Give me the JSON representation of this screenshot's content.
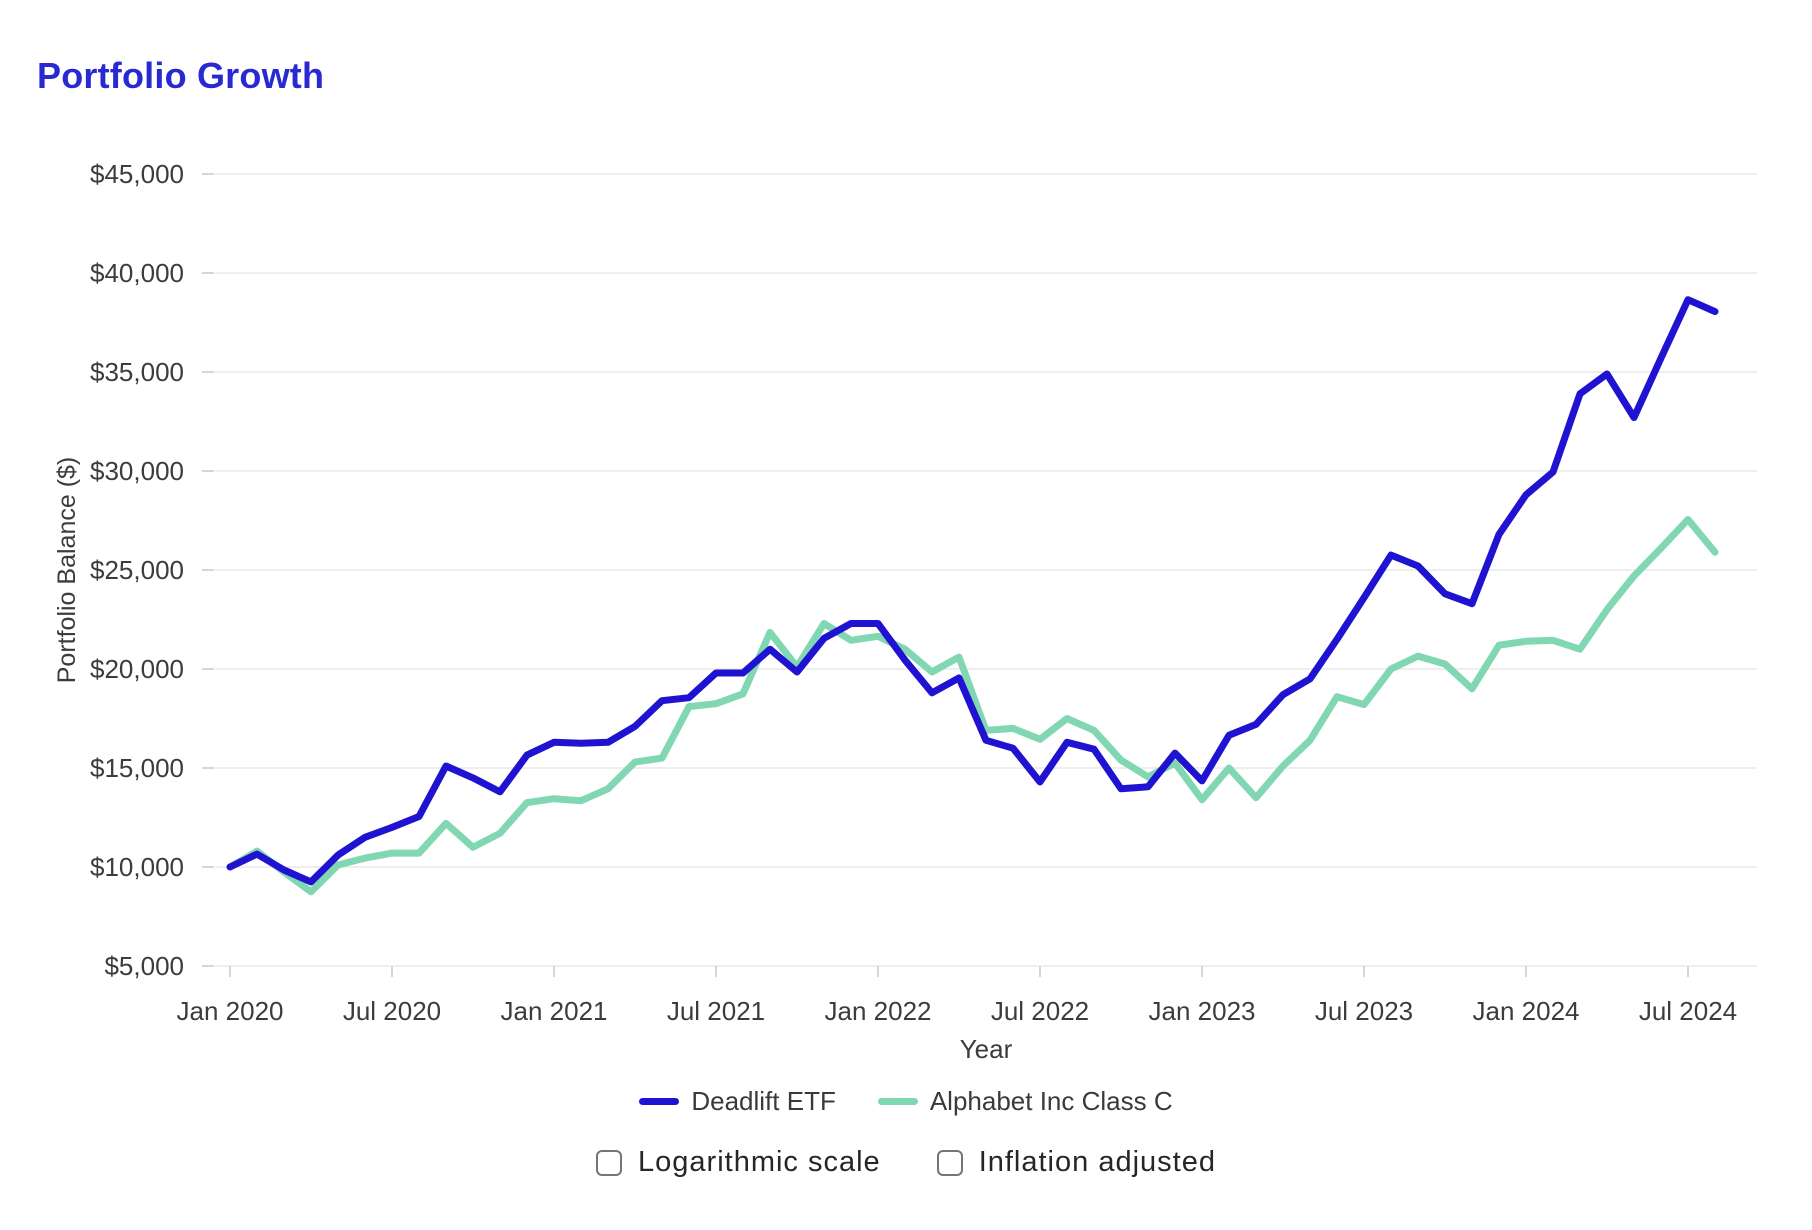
{
  "page": {
    "title": "Portfolio Growth",
    "title_color": "#2929d4",
    "background_color": "#ffffff"
  },
  "chart_data": {
    "type": "line",
    "title": "Portfolio Growth",
    "x_interval": "monthly",
    "x_start": "Jan 2020",
    "x_end": "Aug 2024",
    "xlabel": "Year",
    "ylabel": "Portfolio Balance ($)",
    "ylim": [
      5000,
      45000
    ],
    "grid": true,
    "legend_position": "bottom",
    "x_tick_labels": [
      "Jan 2020",
      "Jul 2020",
      "Jan 2021",
      "Jul 2021",
      "Jan 2022",
      "Jul 2022",
      "Jan 2023",
      "Jul 2023",
      "Jan 2024",
      "Jul 2024"
    ],
    "x_tick_every_n_points": 6,
    "y_tick_labels": [
      "$5,000",
      "$10,000",
      "$15,000",
      "$20,000",
      "$25,000",
      "$30,000",
      "$35,000",
      "$40,000",
      "$45,000"
    ],
    "y_tick_values": [
      5000,
      10000,
      15000,
      20000,
      25000,
      30000,
      35000,
      40000,
      45000
    ],
    "series": [
      {
        "name": "Deadlift ETF",
        "color": "#1f13d1",
        "values": [
          10000,
          10650,
          9850,
          9250,
          10600,
          11500,
          12000,
          12550,
          15100,
          14500,
          13800,
          15650,
          16300,
          16250,
          16300,
          17100,
          18400,
          18550,
          19800,
          19800,
          21000,
          19850,
          21550,
          22300,
          22300,
          20450,
          18800,
          19550,
          16400,
          16000,
          14300,
          16300,
          15950,
          13950,
          14050,
          15750,
          14350,
          16650,
          17200,
          18700,
          19500,
          21500,
          23600,
          25750,
          25200,
          23800,
          23300,
          26800,
          28800,
          29950,
          33900,
          34900,
          32700,
          35700,
          38650,
          38050
        ]
      },
      {
        "name": "Alphabet Inc Class C",
        "color": "#80d7b1",
        "values": [
          10000,
          10800,
          9750,
          8750,
          10100,
          10450,
          10700,
          10700,
          12200,
          11000,
          11700,
          13250,
          13450,
          13350,
          13950,
          15300,
          15500,
          18100,
          18250,
          18750,
          21850,
          20100,
          22300,
          21450,
          21650,
          21000,
          19850,
          20600,
          16900,
          17000,
          16450,
          17500,
          16900,
          15400,
          14550,
          15250,
          13400,
          15000,
          13500,
          15100,
          16400,
          18600,
          18200,
          20000,
          20650,
          20250,
          19000,
          21200,
          21400,
          21450,
          21000,
          23000,
          24700,
          26100,
          27550,
          25900
        ]
      }
    ]
  },
  "controls": {
    "checkboxes": [
      {
        "label": "Logarithmic scale",
        "checked": false
      },
      {
        "label": "Inflation adjusted",
        "checked": false
      }
    ]
  }
}
